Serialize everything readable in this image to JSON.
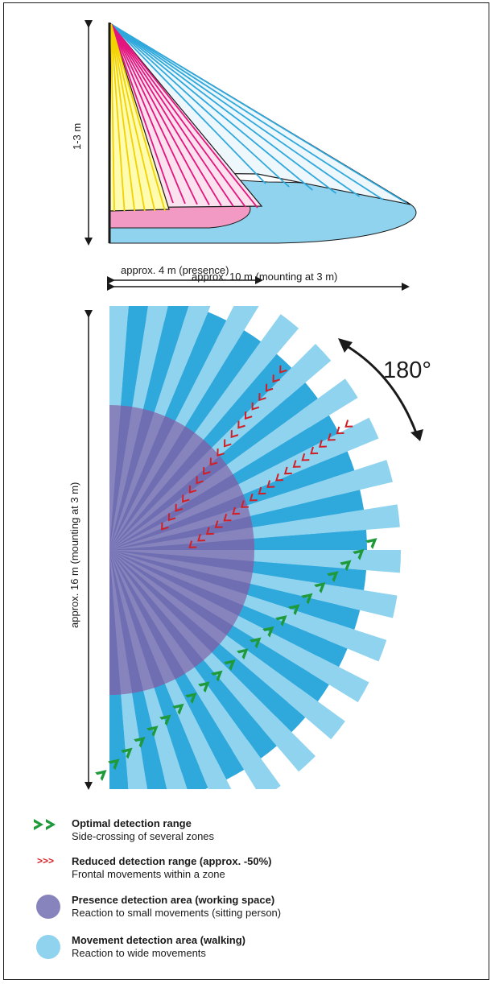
{
  "side_view": {
    "height_label": "1-3 m",
    "presence_label": "approx. 4 m (presence)",
    "movement_label": "approx. 10 m (mounting at 3 m)"
  },
  "top_view": {
    "range_label": "approx. 16 m (mounting at 3 m)",
    "angle_label": "180°"
  },
  "legend": [
    {
      "symbol": "green-double-chevron",
      "title": "Optimal detection range",
      "desc": "Side-crossing of several zones"
    },
    {
      "symbol": "red-triple-chevron",
      "title": "Reduced detection range (approx. -50%)",
      "desc": "Frontal movements within a zone"
    },
    {
      "symbol": "purple-circle",
      "title": "Presence detection area (working space)",
      "desc": "Reaction to small movements (sitting person)"
    },
    {
      "symbol": "light-blue-circle",
      "title": "Movement detection area (walking)",
      "desc": "Reaction to wide movements"
    }
  ],
  "colors": {
    "yellow": "#fff34d",
    "magenta": "#e3157e",
    "pink": "#f29ac4",
    "blue": "#2fa8dc",
    "light_blue": "#8fd3ef",
    "purple": "#8784bd",
    "green": "#1e9a3a",
    "red": "#d21f26"
  }
}
